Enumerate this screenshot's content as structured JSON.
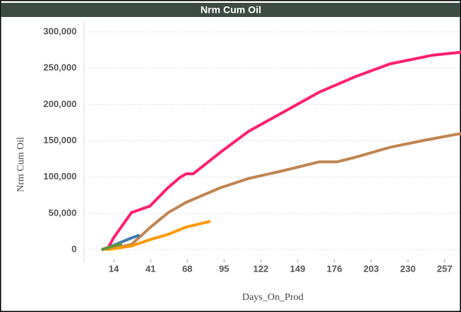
{
  "chart_data": {
    "type": "line",
    "title": "Nrm Cum Oil",
    "x_label": "Days_On_Prod",
    "y_label": "Nrm Cum Oil",
    "xlim": [
      -8,
      269
    ],
    "xticks": [
      14,
      41,
      68,
      95,
      122,
      149,
      176,
      203,
      230,
      257
    ],
    "ylim": [
      0,
      300000
    ],
    "yticks": [
      0,
      {
        "value": 50000,
        "label": "50,000"
      },
      {
        "value": 100000,
        "label": "100,000"
      },
      {
        "value": 150000,
        "label": "150,000"
      },
      {
        "value": 200000,
        "label": "200,000"
      },
      {
        "value": 250000,
        "label": "250,000"
      },
      {
        "value": 300000,
        "label": "300,000"
      }
    ],
    "grid": true,
    "series": [
      {
        "color": "#c08552",
        "x": [
          5,
          14,
          27,
          41,
          54,
          67,
          92,
          113,
          139,
          165,
          178,
          191,
          217,
          243,
          269
        ],
        "values": [
          0,
          2000,
          7000,
          31000,
          51000,
          65000,
          85000,
          98000,
          109000,
          121000,
          121000,
          127000,
          141000,
          151000,
          160000
        ]
      },
      {
        "color": "#ff1f6e",
        "x": [
          5,
          10,
          14,
          27,
          40.6,
          53.6,
          63,
          67.2,
          72.4,
          92.2,
          113,
          139,
          165,
          191,
          217,
          248.6,
          269
        ],
        "values": [
          0,
          3000,
          16600,
          51000,
          60000,
          85000,
          100000,
          104500,
          104500,
          134000,
          163000,
          190000,
          217000,
          238000,
          256000,
          268000,
          272000
        ]
      },
      {
        "color": "#ff9900",
        "x": [
          9,
          27,
          41,
          54,
          67,
          85
        ],
        "values": [
          0,
          5000,
          14000,
          21000,
          31000,
          39000
        ]
      },
      {
        "color": "#3f79b5",
        "x": [
          9,
          19,
          27,
          33
        ],
        "values": [
          2000,
          10000,
          16000,
          20000
        ]
      },
      {
        "color": "#5e9a3a",
        "x": [
          5,
          14,
          20
        ],
        "values": [
          0,
          5000,
          8000
        ]
      }
    ]
  }
}
